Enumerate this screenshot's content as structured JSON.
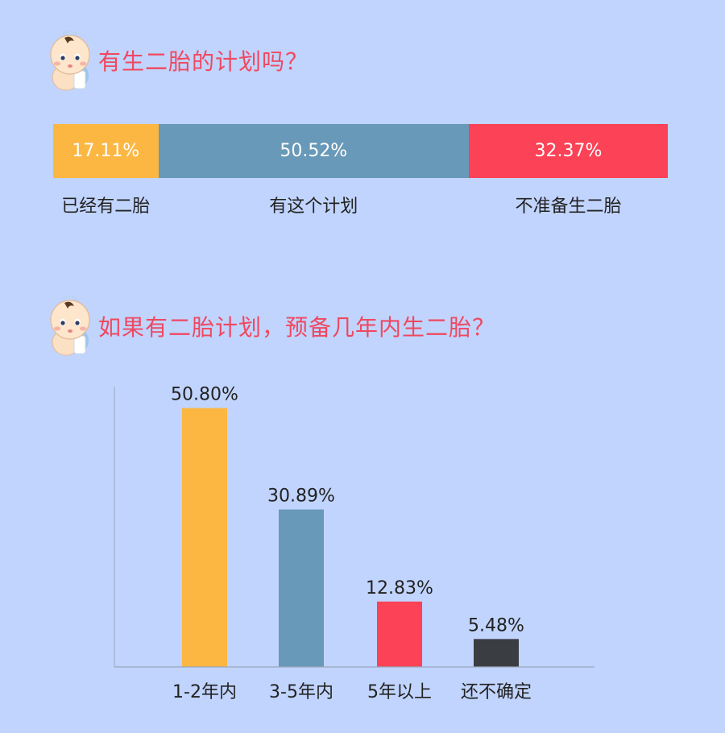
{
  "section1": {
    "title": "有生二胎的计划吗？"
  },
  "section2": {
    "title": "如果有二胎计划，预备几年内生二胎？"
  },
  "chart_data": [
    {
      "type": "bar",
      "orientation": "horizontal-stacked",
      "title": "有生二胎的计划吗？",
      "categories": [
        "已经有二胎",
        "有这个计划",
        "不准备生二胎"
      ],
      "values": [
        17.11,
        50.52,
        32.37
      ],
      "labels": [
        "17.11%",
        "50.52%",
        "32.37%"
      ],
      "colors": [
        "#fcb742",
        "#6899b8",
        "#fb4256"
      ]
    },
    {
      "type": "bar",
      "title": "如果有二胎计划，预备几年内生二胎？",
      "categories": [
        "1-2年内",
        "3-5年内",
        "5年以上",
        "还不确定"
      ],
      "values": [
        50.8,
        30.89,
        12.83,
        5.48
      ],
      "labels": [
        "50.80%",
        "30.89%",
        "12.83%",
        "5.48%"
      ],
      "colors": [
        "#fcb742",
        "#6899b8",
        "#fb4256",
        "#3a3d42"
      ],
      "ylim": [
        0,
        55
      ],
      "grid": false
    }
  ]
}
